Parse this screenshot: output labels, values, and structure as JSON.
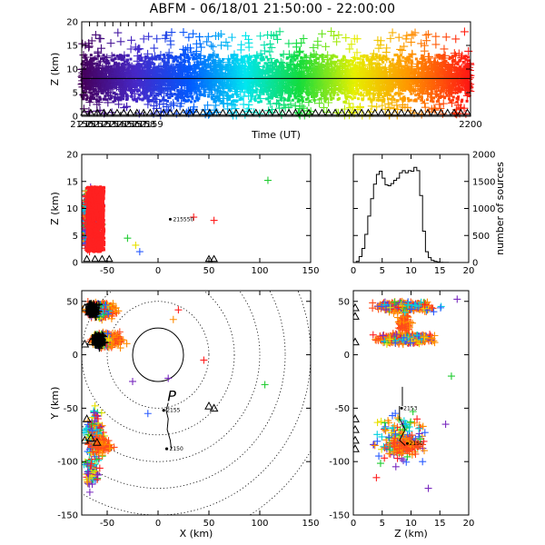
{
  "title": "ABFM - 06/18/01 21:50:00 - 22:00:00",
  "chart_data": [
    {
      "id": "time_height",
      "type": "scatter",
      "xlabel": "Time (UT)",
      "ylabel": "Z (km)",
      "xlim": [
        2150,
        2200
      ],
      "ylim": [
        0,
        20
      ],
      "xticks": [
        "2150",
        "2151",
        "2152",
        "2153",
        "2154",
        "2155",
        "2156",
        "2157",
        "2158",
        "2159",
        "2200"
      ],
      "yticks": [
        "0",
        "5",
        "10",
        "15",
        "20"
      ],
      "reference_line_z": 8,
      "color_by": "time (purple → blue → cyan → green → yellow → red)",
      "series": [
        {
          "x": [
            2150.3,
            2151.2,
            2152.4,
            2153.6,
            2154.7,
            2155.9,
            2157.2,
            2158.4,
            2159.5
          ],
          "y": [
            8,
            7,
            9,
            7,
            8,
            7,
            8,
            9,
            8
          ]
        }
      ]
    },
    {
      "id": "x_height",
      "type": "scatter",
      "ylabel": "Z (km)",
      "xlim": [
        -75,
        150
      ],
      "ylim": [
        0,
        20
      ],
      "xticks": [
        "-50",
        "0",
        "50",
        "100",
        "150"
      ],
      "yticks": [
        "0",
        "5",
        "10",
        "15",
        "20"
      ],
      "annotations": [
        {
          "x": 12,
          "y": 8,
          "text": "215550"
        }
      ],
      "series": [
        {
          "x": [
            -65,
            -58,
            -52,
            -45,
            -60,
            -40
          ],
          "y": [
            5,
            9,
            12,
            7,
            3,
            4
          ]
        },
        {
          "x": [
            108,
            55,
            35,
            22,
            12
          ],
          "y": [
            15.2,
            7.8,
            8.4,
            8.0,
            8.0
          ]
        }
      ],
      "stations": [
        {
          "x": -70,
          "y": 0
        },
        {
          "x": -62,
          "y": 0
        },
        {
          "x": -55,
          "y": 0
        },
        {
          "x": -48,
          "y": 0
        },
        {
          "x": 50,
          "y": 0
        },
        {
          "x": 55,
          "y": 0
        }
      ]
    },
    {
      "id": "histogram",
      "type": "histogram",
      "xlim": [
        0,
        20
      ],
      "ylim": [
        0,
        2000
      ],
      "xticks": [
        "0",
        "5",
        "10",
        "15",
        "20"
      ],
      "yticks": [
        "0",
        "500",
        "1000",
        "1500",
        "2000"
      ],
      "ylabel": "number of sources",
      "bins": [
        0,
        0.5,
        1,
        1.5,
        2,
        2.5,
        3,
        3.5,
        4,
        4.5,
        5,
        5.5,
        6,
        6.5,
        7,
        7.5,
        8,
        8.5,
        9,
        9.5,
        10,
        10.5,
        11,
        11.5,
        12,
        12.5,
        13,
        13.5,
        14,
        14.5,
        15,
        15.5,
        16,
        16.5,
        17,
        17.5,
        18,
        18.5,
        19,
        19.5
      ],
      "counts": [
        0,
        20,
        110,
        260,
        520,
        860,
        1180,
        1450,
        1630,
        1690,
        1560,
        1440,
        1420,
        1460,
        1520,
        1560,
        1660,
        1700,
        1660,
        1700,
        1690,
        1760,
        1700,
        1240,
        580,
        200,
        90,
        40,
        20,
        10,
        5,
        3,
        2,
        1,
        0,
        0,
        0,
        0,
        0,
        0
      ]
    },
    {
      "id": "plan_view",
      "type": "scatter",
      "xlabel": "X (km)",
      "ylabel": "Y (km)",
      "xlim": [
        -75,
        150
      ],
      "ylim": [
        -150,
        60
      ],
      "xticks": [
        "-50",
        "0",
        "50",
        "100",
        "150"
      ],
      "yticks": [
        "-150",
        "-100",
        "-50",
        "0",
        "50"
      ],
      "range_rings_km": [
        25,
        50,
        75,
        100,
        125,
        150,
        175
      ],
      "annotations": [
        {
          "x": 10,
          "y": -45,
          "text": "P"
        },
        {
          "x": 10,
          "y": -52,
          "text": "2155"
        },
        {
          "x": 13,
          "y": -88,
          "text": "2150"
        }
      ],
      "track": [
        [
          10,
          -45
        ],
        [
          8,
          -52
        ],
        [
          10,
          -60
        ],
        [
          9,
          -70
        ],
        [
          12,
          -80
        ],
        [
          13,
          -88
        ]
      ],
      "series": [
        {
          "x": [
            20,
            15,
            10,
            45,
            105,
            -25,
            -10
          ],
          "y": [
            42,
            33,
            -22,
            -5,
            -28,
            -25,
            -55
          ]
        }
      ],
      "stations": [
        {
          "x": -72,
          "y": 44
        },
        {
          "x": -68,
          "y": 40
        },
        {
          "x": -72,
          "y": 10
        },
        {
          "x": -66,
          "y": 12
        },
        {
          "x": -70,
          "y": -60
        },
        {
          "x": -72,
          "y": -80
        },
        {
          "x": -66,
          "y": -78
        },
        {
          "x": -60,
          "y": -82
        },
        {
          "x": 50,
          "y": -48
        },
        {
          "x": 55,
          "y": -50
        }
      ]
    },
    {
      "id": "z_y",
      "type": "scatter",
      "xlabel": "Z (km)",
      "xlim": [
        0,
        20
      ],
      "ylim": [
        -150,
        60
      ],
      "xticks": [
        "0",
        "5",
        "10",
        "15",
        "20"
      ],
      "yticks": [
        "-150",
        "-100",
        "-50",
        "0",
        "50"
      ],
      "annotations": [
        {
          "x": 9,
          "y": -50,
          "text": "2153"
        },
        {
          "x": 10,
          "y": -83,
          "text": "2150"
        }
      ],
      "track": [
        [
          8,
          -48
        ],
        [
          8,
          -60
        ],
        [
          9,
          -70
        ],
        [
          8,
          -80
        ],
        [
          9,
          -85
        ]
      ],
      "series": [
        {
          "x": [
            5,
            8,
            12,
            16,
            4,
            17,
            18,
            13
          ],
          "y": [
            -60,
            -70,
            -95,
            -85,
            -115,
            -20,
            52,
            -125
          ]
        }
      ],
      "stations": [
        {
          "x": 0,
          "y": 44
        },
        {
          "x": 0,
          "y": 36
        },
        {
          "x": 0,
          "y": 12
        },
        {
          "x": 0,
          "y": -60
        },
        {
          "x": 0,
          "y": -70
        },
        {
          "x": 0,
          "y": -80
        },
        {
          "x": 0,
          "y": -88
        }
      ]
    }
  ]
}
